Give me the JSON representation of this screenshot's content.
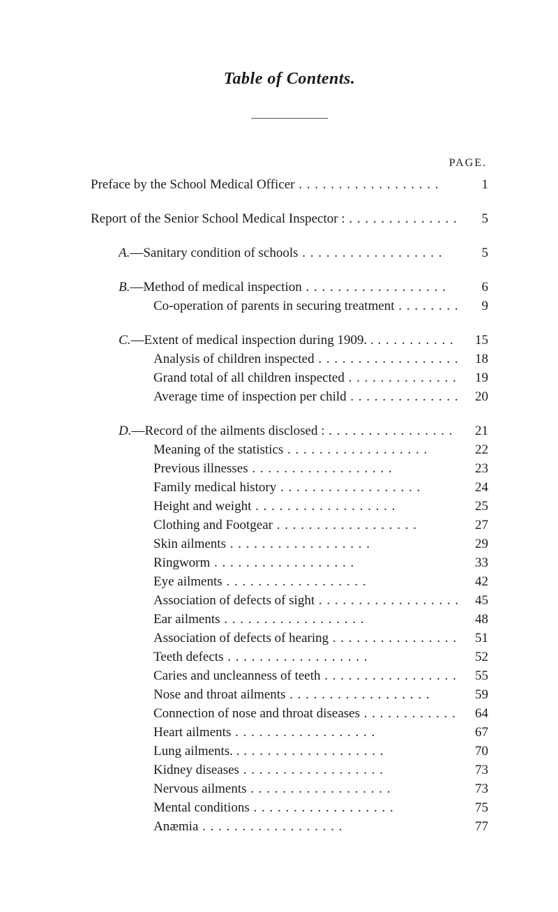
{
  "title": "Table of Contents.",
  "page_label": "PAGE.",
  "groups": [
    {
      "entries": [
        {
          "indent": 0,
          "prefix": "",
          "text": "Preface by the School Medical Officer",
          "page": "1"
        }
      ]
    },
    {
      "entries": [
        {
          "indent": 0,
          "prefix": "",
          "text": "Report of the Senior School Medical Inspector :",
          "page": "5"
        }
      ]
    },
    {
      "entries": [
        {
          "indent": 1,
          "prefix": "A.",
          "text": "—Sanitary condition of schools",
          "page": "5"
        }
      ]
    },
    {
      "entries": [
        {
          "indent": 1,
          "prefix": "B.",
          "text": "—Method of medical inspection",
          "page": "6"
        },
        {
          "indent": 2,
          "prefix": "",
          "text": "Co-operation of parents in securing treatment",
          "page": "9"
        }
      ]
    },
    {
      "entries": [
        {
          "indent": 1,
          "prefix": "C.",
          "text": "—Extent of medical inspection during 1909. .",
          "page": "15"
        },
        {
          "indent": 2,
          "prefix": "",
          "text": "Analysis of children inspected",
          "page": "18"
        },
        {
          "indent": 2,
          "prefix": "",
          "text": "Grand total of all children inspected",
          "page": "19"
        },
        {
          "indent": 2,
          "prefix": "",
          "text": "Average time of inspection per child",
          "page": "20"
        }
      ]
    },
    {
      "entries": [
        {
          "indent": 1,
          "prefix": "D.",
          "text": "—Record of the ailments disclosed :",
          "page": "21"
        },
        {
          "indent": 2,
          "prefix": "",
          "text": "Meaning of the statistics",
          "page": "22"
        },
        {
          "indent": 2,
          "prefix": "",
          "text": "Previous illnesses",
          "page": "23"
        },
        {
          "indent": 2,
          "prefix": "",
          "text": "Family medical history",
          "page": "24"
        },
        {
          "indent": 2,
          "prefix": "",
          "text": "Height and weight",
          "page": "25"
        },
        {
          "indent": 2,
          "prefix": "",
          "text": "Clothing and Footgear",
          "page": "27"
        },
        {
          "indent": 2,
          "prefix": "",
          "text": "Skin ailments",
          "page": "29"
        },
        {
          "indent": 2,
          "prefix": "",
          "text": "Ringworm",
          "page": "33"
        },
        {
          "indent": 2,
          "prefix": "",
          "text": "Eye ailments",
          "page": "42"
        },
        {
          "indent": 2,
          "prefix": "",
          "text": "Association of defects of sight",
          "page": "45"
        },
        {
          "indent": 2,
          "prefix": "",
          "text": "Ear ailments",
          "page": "48"
        },
        {
          "indent": 2,
          "prefix": "",
          "text": "Association of defects of hearing",
          "page": "51"
        },
        {
          "indent": 2,
          "prefix": "",
          "text": "Teeth defects",
          "page": "52"
        },
        {
          "indent": 2,
          "prefix": "",
          "text": "Caries and uncleanness of teeth",
          "page": "55"
        },
        {
          "indent": 2,
          "prefix": "",
          "text": "Nose and throat ailments",
          "page": "59"
        },
        {
          "indent": 2,
          "prefix": "",
          "text": "Connection of nose and throat diseases",
          "page": "64"
        },
        {
          "indent": 2,
          "prefix": "",
          "text": "Heart ailments",
          "page": "67"
        },
        {
          "indent": 2,
          "prefix": "",
          "text": "Lung ailments. .",
          "page": "70"
        },
        {
          "indent": 2,
          "prefix": "",
          "text": "Kidney diseases",
          "page": "73"
        },
        {
          "indent": 2,
          "prefix": "",
          "text": "Nervous ailments",
          "page": "73"
        },
        {
          "indent": 2,
          "prefix": "",
          "text": "Mental conditions",
          "page": "75"
        },
        {
          "indent": 2,
          "prefix": "",
          "text": "Anæmia",
          "page": "77"
        }
      ]
    }
  ]
}
